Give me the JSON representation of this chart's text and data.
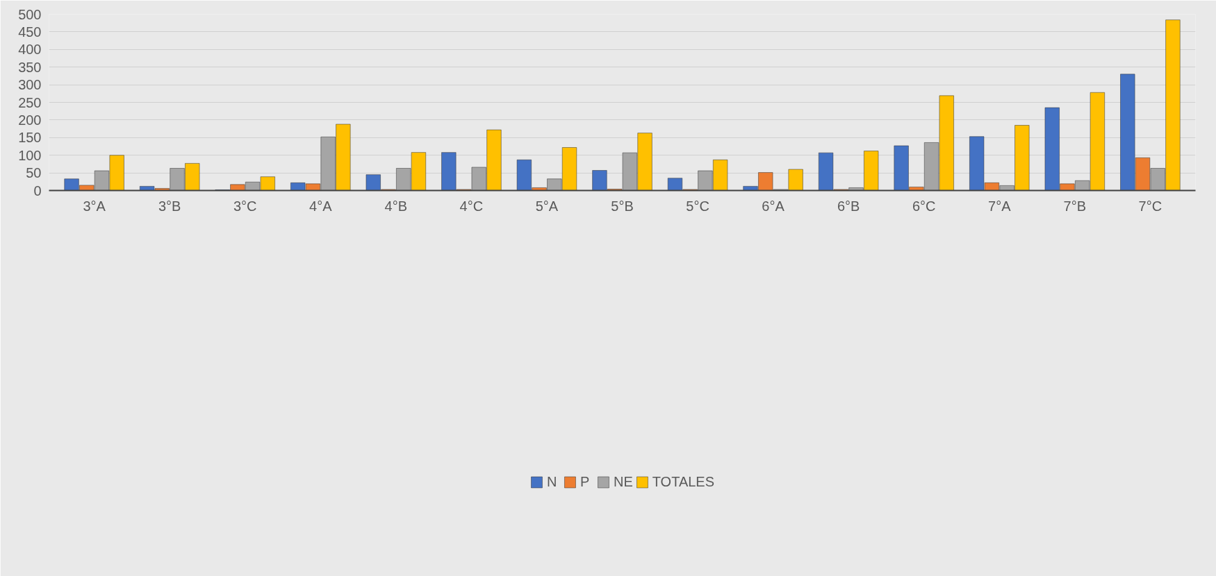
{
  "chart_data": {
    "type": "bar",
    "categories": [
      "3°A",
      "3°B",
      "3°C",
      "4°A",
      "4°B",
      "4°C",
      "5°A",
      "5°B",
      "5°C",
      "6°A",
      "6°B",
      "6°C",
      "7°A",
      "7°B",
      "7°C"
    ],
    "series": [
      {
        "name": "N",
        "color": "#4472c4",
        "values": [
          33,
          12,
          2,
          22,
          45,
          108,
          87,
          57,
          35,
          12,
          107,
          127,
          153,
          235,
          330
        ]
      },
      {
        "name": "P",
        "color": "#ed7d31",
        "values": [
          15,
          6,
          17,
          19,
          3,
          3,
          8,
          4,
          3,
          51,
          3,
          10,
          22,
          19,
          93
        ]
      },
      {
        "name": "NE",
        "color": "#a5a5a5",
        "values": [
          56,
          63,
          24,
          152,
          63,
          66,
          33,
          107,
          56,
          3,
          8,
          136,
          14,
          28,
          63
        ]
      },
      {
        "name": "TOTALES",
        "color": "#ffc000",
        "values": [
          100,
          77,
          39,
          188,
          108,
          172,
          122,
          163,
          87,
          60,
          112,
          269,
          185,
          278,
          484
        ]
      }
    ],
    "ylim": [
      0,
      500
    ],
    "yticks": [
      0,
      50,
      100,
      150,
      200,
      250,
      300,
      350,
      400,
      450,
      500
    ],
    "grid": "y",
    "legend": "bottom"
  }
}
